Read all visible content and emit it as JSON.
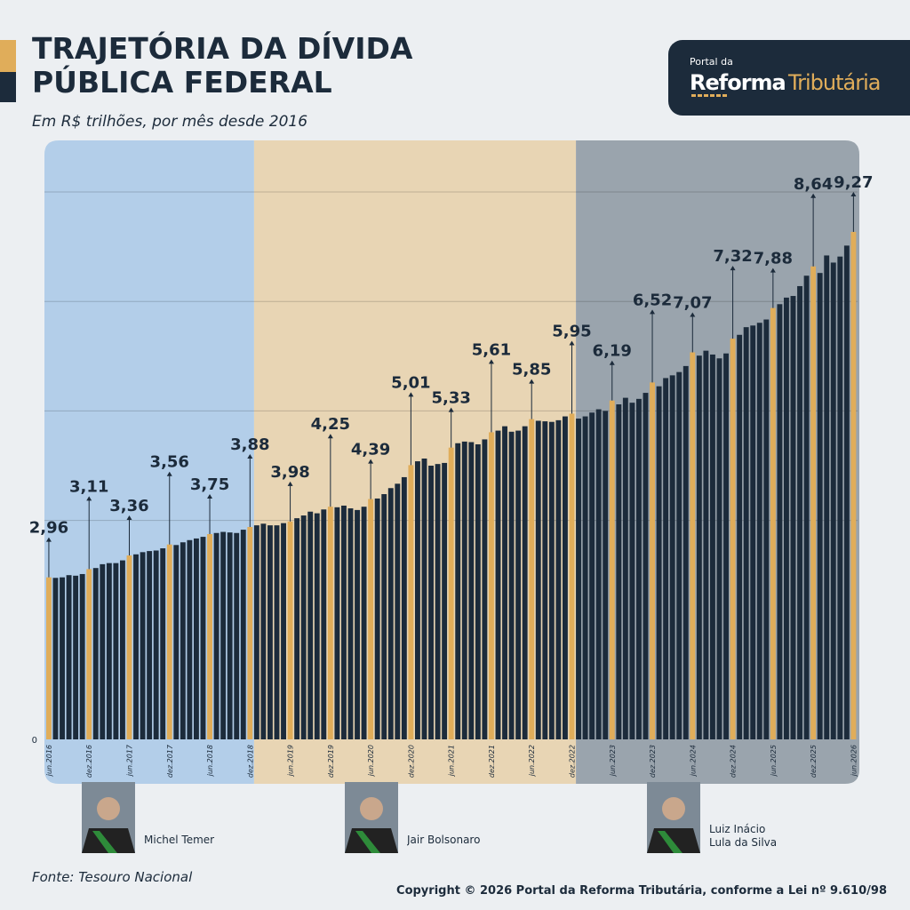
{
  "header": {
    "title_lines": [
      "TRAJETÓRIA DA DÍVIDA",
      "PÚBLICA FEDERAL"
    ],
    "subtitle": "Em R$ trilhões, por mês desde 2016",
    "logo": {
      "small": "Portal da",
      "bold": "Reforma",
      "light": "Tributária"
    }
  },
  "chart_data": {
    "type": "bar",
    "categories": [
      "jun.2016",
      null,
      null,
      null,
      null,
      null,
      "dez.2016",
      null,
      null,
      null,
      null,
      null,
      "jun.2017",
      null,
      null,
      null,
      null,
      null,
      "dez.2017",
      null,
      null,
      null,
      null,
      null,
      "jun.2018",
      null,
      null,
      null,
      null,
      null,
      "dez.2018",
      null,
      null,
      null,
      null,
      null,
      "jun.2019",
      null,
      null,
      null,
      null,
      null,
      "dez.2019",
      null,
      null,
      null,
      null,
      null,
      "jun.2020",
      null,
      null,
      null,
      null,
      null,
      "dez.2020",
      null,
      null,
      null,
      null,
      null,
      "jun.2021",
      null,
      null,
      null,
      null,
      null,
      "dez.2021",
      null,
      null,
      null,
      null,
      null,
      "jun.2022",
      null,
      null,
      null,
      null,
      null,
      "dez.2022",
      null,
      null,
      null,
      null,
      null,
      "jun.2023",
      null,
      null,
      null,
      null,
      null,
      "dez.2023",
      null,
      null,
      null,
      null,
      null,
      "jun.2024",
      null,
      null,
      null,
      null,
      null,
      "dez.2024",
      null,
      null,
      null,
      null,
      null,
      "jun.2025",
      null,
      null,
      null,
      null,
      null,
      "dez.2025",
      null,
      null,
      null,
      null,
      null,
      "jun.2026"
    ],
    "values": [
      2.96,
      2.95,
      2.96,
      3.0,
      2.99,
      3.02,
      3.11,
      3.13,
      3.2,
      3.22,
      3.22,
      3.27,
      3.36,
      3.38,
      3.42,
      3.44,
      3.45,
      3.49,
      3.56,
      3.55,
      3.6,
      3.64,
      3.67,
      3.7,
      3.75,
      3.77,
      3.79,
      3.78,
      3.77,
      3.83,
      3.88,
      3.91,
      3.94,
      3.91,
      3.91,
      3.95,
      3.98,
      4.04,
      4.09,
      4.16,
      4.13,
      4.2,
      4.25,
      4.24,
      4.27,
      4.22,
      4.19,
      4.25,
      4.39,
      4.4,
      4.48,
      4.59,
      4.67,
      4.79,
      5.01,
      5.08,
      5.13,
      5.0,
      5.03,
      5.05,
      5.33,
      5.41,
      5.44,
      5.43,
      5.39,
      5.48,
      5.61,
      5.64,
      5.72,
      5.62,
      5.64,
      5.72,
      5.85,
      5.82,
      5.81,
      5.8,
      5.83,
      5.9,
      5.95,
      5.86,
      5.9,
      5.97,
      6.03,
      6.0,
      6.19,
      6.12,
      6.24,
      6.15,
      6.22,
      6.33,
      6.52,
      6.45,
      6.6,
      6.65,
      6.71,
      6.82,
      7.07,
      7.01,
      7.1,
      7.03,
      6.96,
      7.05,
      7.32,
      7.39,
      7.53,
      7.56,
      7.61,
      7.67,
      7.88,
      7.95,
      8.07,
      8.1,
      8.28,
      8.47,
      8.64,
      8.52,
      8.84,
      8.71,
      8.82,
      9.02,
      9.27
    ],
    "value_labels": [
      "2,96",
      null,
      null,
      null,
      null,
      null,
      "3,11",
      null,
      null,
      null,
      null,
      null,
      "3,36",
      null,
      null,
      null,
      null,
      null,
      "3,56",
      null,
      null,
      null,
      null,
      null,
      "3,75",
      null,
      null,
      null,
      null,
      null,
      "3,88",
      null,
      null,
      null,
      null,
      null,
      "3,98",
      null,
      null,
      null,
      null,
      null,
      "4,25",
      null,
      null,
      null,
      null,
      null,
      "4,39",
      null,
      null,
      null,
      null,
      null,
      "5,01",
      null,
      null,
      null,
      null,
      null,
      "5,33",
      null,
      null,
      null,
      null,
      null,
      "5,61",
      null,
      null,
      null,
      null,
      null,
      "5,85",
      null,
      null,
      null,
      null,
      null,
      "5,95",
      null,
      null,
      null,
      null,
      null,
      "6,19",
      null,
      null,
      null,
      null,
      null,
      "6,52",
      null,
      null,
      null,
      null,
      null,
      "7,07",
      null,
      null,
      null,
      null,
      null,
      "7,32",
      null,
      null,
      null,
      null,
      null,
      "7,88",
      null,
      null,
      null,
      null,
      null,
      "8,64",
      null,
      null,
      null,
      null,
      null,
      "9,27"
    ],
    "color": "#1c2b3b",
    "highlight_color": "#e0ad5a",
    "ylim": [
      0,
      10
    ],
    "yticks": [
      0
    ],
    "gridlines": [
      4,
      6,
      8,
      10
    ],
    "periods": [
      {
        "name": "Michel Temer",
        "from": "jun.2016",
        "to": "dez.2018",
        "color": "#b3cee9"
      },
      {
        "name": "Jair Bolsonaro",
        "from": "dez.2018",
        "to": "dez.2022",
        "color": "#e8d5b4"
      },
      {
        "name": "Luiz Inácio Lula da Silva",
        "from": "dez.2022",
        "to": "jun.2026",
        "color": "#9aa4ad"
      }
    ]
  },
  "footer": {
    "source": "Fonte: Tesouro Nacional",
    "copyright": "Copyright © 2026 Portal da Reforma Tributária, conforme a Lei nº 9.610/98"
  }
}
